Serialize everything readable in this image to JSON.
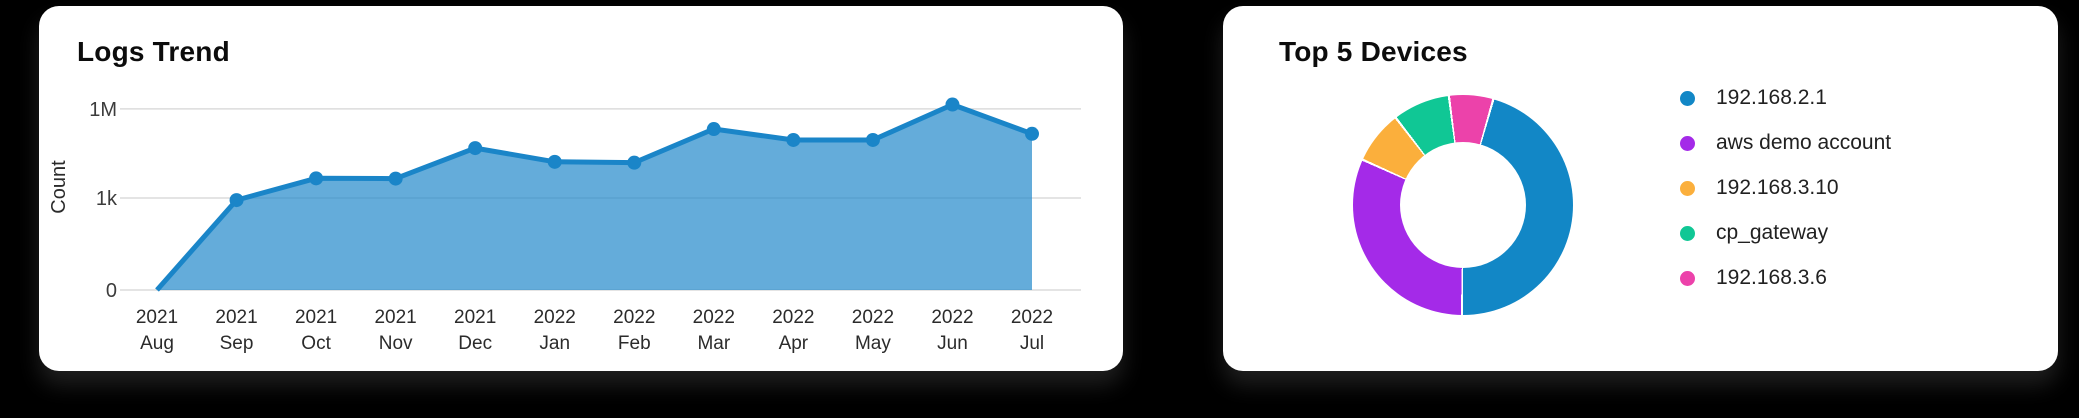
{
  "page": {
    "background": "#000000"
  },
  "chart_data": [
    {
      "type": "area",
      "title": "Logs Trend",
      "ylabel": "Count",
      "categories": [
        "2021 Aug",
        "2021 Sep",
        "2021 Oct",
        "2021 Nov",
        "2021 Dec",
        "2022 Jan",
        "2022 Feb",
        "2022 Mar",
        "2022 Apr",
        "2022 May",
        "2022 Jun",
        "2022 Jul"
      ],
      "values": [
        0,
        850,
        4600,
        4500,
        48000,
        16500,
        15500,
        210000,
        90000,
        90000,
        1400000,
        145000
      ],
      "yticks": [
        {
          "label": "0",
          "value": 0
        },
        {
          "label": "1k",
          "value": 1000
        },
        {
          "label": "1M",
          "value": 1000000
        }
      ],
      "y_scale": "log-with-zero-baseline",
      "grid": true,
      "line_color": "#1a85c8",
      "fill_color": "rgba(26,133,200,0.68)",
      "marker_color": "#1a85c8"
    },
    {
      "type": "donut",
      "title": "Top 5 Devices",
      "labels": [
        "192.168.2.1",
        "aws demo account",
        "192.168.3.10",
        "cp_gateway",
        "192.168.3.6"
      ],
      "values_pct": [
        45.7,
        31.6,
        7.8,
        8.4,
        6.5
      ],
      "colors": [
        "#1287c6",
        "#a42ae8",
        "#fbaf3c",
        "#10c795",
        "#ec42aa"
      ],
      "start_angle_deg": 16,
      "legend_position": "right"
    }
  ]
}
